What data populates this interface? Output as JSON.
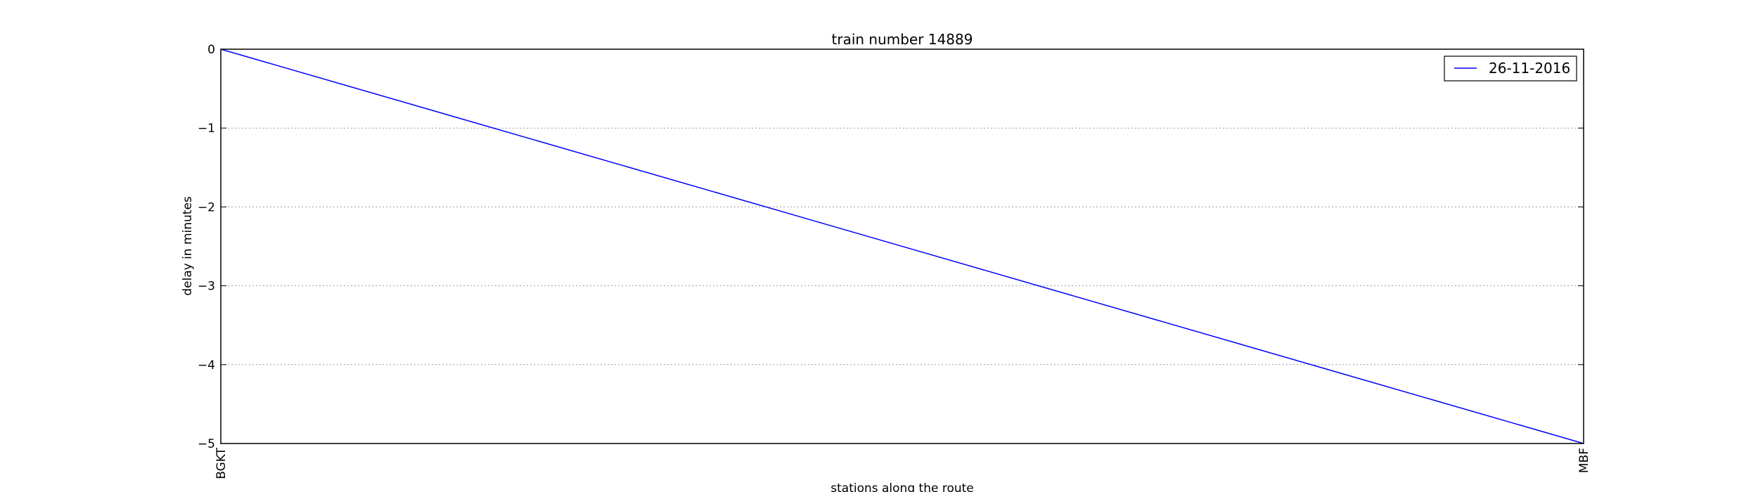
{
  "chart_data": {
    "type": "line",
    "title": "train number 14889",
    "xlabel": "stations along the route",
    "ylabel": "delay in minutes",
    "categories": [
      "BGKT",
      "MBF"
    ],
    "series": [
      {
        "name": "26-11-2016",
        "values": [
          0,
          -5
        ],
        "color": "#0000ff"
      }
    ],
    "ylim": [
      -5,
      0
    ],
    "yticks": [
      0,
      -1,
      -2,
      -3,
      -4,
      -5
    ],
    "ytick_labels": [
      "0",
      "−1",
      "−2",
      "−3",
      "−4",
      "−5"
    ],
    "grid": "horizontal, dotted",
    "legend_position": "top-right"
  }
}
